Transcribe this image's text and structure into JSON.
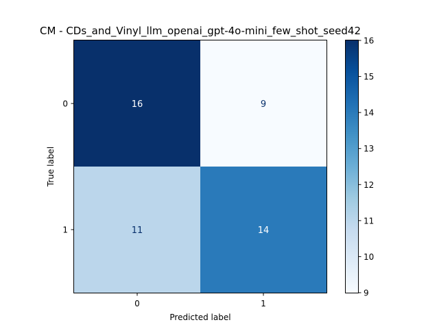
{
  "chart_data": {
    "type": "heatmap",
    "title": "CM - CDs_and_Vinyl_llm_openai_gpt-4o-mini_few_shot_seed42",
    "xlabel": "Predicted label",
    "ylabel": "True label",
    "x_categories": [
      "0",
      "1"
    ],
    "y_categories": [
      "0",
      "1"
    ],
    "values": [
      [
        16,
        9
      ],
      [
        11,
        14
      ]
    ],
    "colormap": "Blues",
    "colorbar": {
      "min": 9,
      "max": 16,
      "ticks": [
        "9",
        "10",
        "11",
        "12",
        "13",
        "14",
        "15",
        "16"
      ]
    }
  }
}
